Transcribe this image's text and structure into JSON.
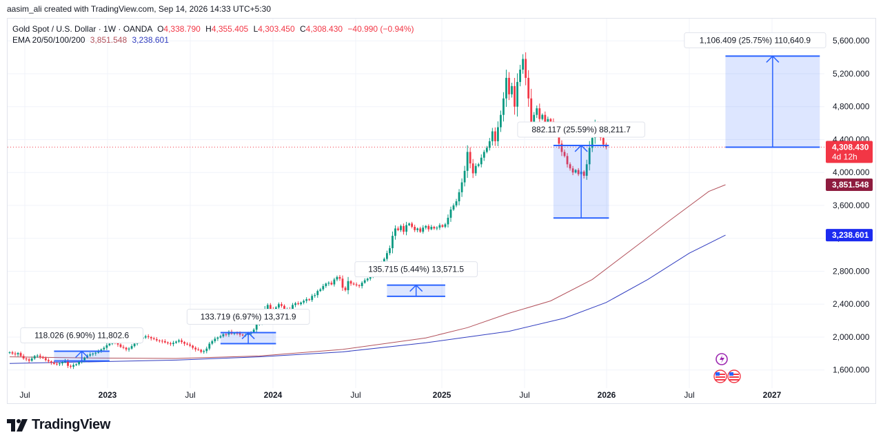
{
  "header": {
    "credit": "aasim_ali created with TradingView.com, Sep 14, 2026 14:33 UTC+5:30",
    "symbol": "Gold Spot / U.S. Dollar · 1W · OANDA",
    "open_label": "O",
    "open": "4,338.790",
    "high_label": "H",
    "high": "4,355.405",
    "low_label": "L",
    "low": "4,303.450",
    "close_label": "C",
    "close": "4,308.430",
    "change": "−40.990 (−0.94%)",
    "ema_label": "EMA 20/50/100/200",
    "ema_50": "3,851.548",
    "ema_200": "3,238.601"
  },
  "footer": {
    "brand": "TradingView"
  },
  "colors": {
    "up": "#089981",
    "down": "#f23645",
    "ema50": "#b2505a",
    "ema200": "#2f3bbf",
    "measure_box": "#2962ff",
    "price_badge": "#f23645",
    "ema50_badge": "#8e1c3f",
    "ema200_badge": "#1c2bf0"
  },
  "chart_data": {
    "type": "candlestick",
    "symbol": "XAUUSD",
    "interval": "1W",
    "y_axis": {
      "ticks": [
        1600,
        2000,
        2400,
        2800,
        3200,
        3600,
        4000,
        4400,
        4800,
        5200,
        5600
      ],
      "tick_labels": [
        "1,600.000",
        "2,000.000",
        "2,400.000",
        "2,800.000",
        "3,200.000",
        "3,600.000",
        "4,000.000",
        "4,400.000",
        "4,800.000",
        "5,200.000",
        "5,600.000"
      ],
      "range": [
        1380,
        5870
      ]
    },
    "x_axis": {
      "labels": [
        "Jul",
        "2023",
        "Jul",
        "2024",
        "Jul",
        "2025",
        "Jul",
        "2026",
        "Jul",
        "2027"
      ],
      "bold": [
        false,
        true,
        false,
        true,
        false,
        true,
        false,
        true,
        false,
        true
      ],
      "label_dates": [
        "2022-07",
        "2023-01",
        "2023-07",
        "2024-01",
        "2024-07",
        "2025-01",
        "2025-07",
        "2026-01",
        "2026-07",
        "2027-01"
      ]
    },
    "closes": [
      1815,
      1800,
      1790,
      1806,
      1770,
      1740,
      1730,
      1712,
      1740,
      1770,
      1775,
      1760,
      1745,
      1720,
      1705,
      1690,
      1675,
      1670,
      1680,
      1695,
      1710,
      1650,
      1640,
      1660,
      1670,
      1700,
      1720,
      1750,
      1775,
      1790,
      1800,
      1810,
      1825,
      1850,
      1870,
      1900,
      1920,
      1940,
      1935,
      1910,
      1880,
      1870,
      1850,
      1860,
      1890,
      1920,
      1950,
      1980,
      1995,
      2010,
      2000,
      1985,
      1975,
      1960,
      1955,
      1950,
      1935,
      1925,
      1915,
      1930,
      1945,
      1960,
      1940,
      1920,
      1910,
      1895,
      1870,
      1850,
      1845,
      1820,
      1830,
      1860,
      1920,
      1950,
      1980,
      1995,
      2010,
      2035,
      2030,
      2065,
      2040,
      2050,
      2045,
      2030,
      2020,
      2025,
      2040,
      2060,
      2090,
      2160,
      2180,
      2230,
      2330,
      2390,
      2340,
      2310,
      2360,
      2400,
      2380,
      2330,
      2340,
      2320,
      2390,
      2410,
      2400,
      2420,
      2440,
      2460,
      2450,
      2500,
      2510,
      2560,
      2580,
      2620,
      2650,
      2660,
      2640,
      2700,
      2730,
      2710,
      2600,
      2570,
      2680,
      2650,
      2640,
      2630,
      2620,
      2660,
      2690,
      2710,
      2750,
      2800,
      2850,
      2880,
      2900,
      2950,
      3020,
      3080,
      3230,
      3320,
      3300,
      3350,
      3280,
      3360,
      3380,
      3340,
      3300,
      3320,
      3280,
      3330,
      3350,
      3310,
      3340,
      3320,
      3330,
      3360,
      3340,
      3370,
      3450,
      3550,
      3600,
      3650,
      3760,
      3880,
      4020,
      4250,
      4110,
      3990,
      4080,
      4100,
      4180,
      4250,
      4300,
      4380,
      4500,
      4380,
      4550,
      4700,
      4900,
      5150,
      4950,
      5050,
      4800,
      5100,
      5250,
      5380,
      5150,
      4900,
      4600,
      4700,
      4780,
      4650,
      4700,
      4600,
      4650,
      4620,
      4530,
      4500,
      4350,
      4250,
      4200,
      4100,
      4050,
      4000,
      4030,
      3980,
      4010,
      3960,
      4100,
      4300,
      4420,
      4580,
      4500,
      4420,
      4340,
      4308
    ],
    "ema_50": {
      "name": "EMA 50",
      "last": 3851.548,
      "path_samples": [
        [
          0,
          1760
        ],
        [
          30,
          1745
        ],
        [
          60,
          1740
        ],
        [
          90,
          1770
        ],
        [
          120,
          1850
        ],
        [
          150,
          1990
        ],
        [
          165,
          2115
        ],
        [
          180,
          2290
        ],
        [
          195,
          2440
        ],
        [
          210,
          2700
        ],
        [
          228,
          3160
        ],
        [
          238,
          3420
        ],
        [
          252,
          3770
        ],
        [
          258,
          3851.548
        ]
      ]
    },
    "ema_200": {
      "name": "EMA 200",
      "last": 3238.601,
      "path_samples": [
        [
          0,
          1680
        ],
        [
          60,
          1720
        ],
        [
          90,
          1760
        ],
        [
          120,
          1820
        ],
        [
          150,
          1930
        ],
        [
          180,
          2070
        ],
        [
          200,
          2230
        ],
        [
          215,
          2420
        ],
        [
          230,
          2700
        ],
        [
          245,
          3020
        ],
        [
          258,
          3238.601
        ]
      ]
    },
    "price_labels": [
      {
        "text": "4,308.430",
        "sub": "4d 12h",
        "value": 4308.43,
        "color": "#f23645"
      },
      {
        "text": "3,851.548",
        "value": 3851.548,
        "color": "#8e1c3f"
      },
      {
        "text": "3,238.601",
        "value": 3238.601,
        "color": "#1c2bf0"
      }
    ],
    "measures": [
      {
        "text": "118.026 (6.90%) 11,802.6",
        "from_bar": 16,
        "to_bar": 36,
        "from": 1710,
        "to": 1828
      },
      {
        "text": "133.719 (6.97%) 13,371.9",
        "from_bar": 76,
        "to_bar": 96,
        "from": 1920,
        "to": 2054
      },
      {
        "text": "135.715 (5.44%) 13,571.5",
        "from_bar": 136,
        "to_bar": 157,
        "from": 2495,
        "to": 2631
      },
      {
        "text": "882.117 (25.59%) 88,211.7",
        "from_bar": 196,
        "to_bar": 216,
        "from": 3447,
        "to": 4329
      },
      {
        "text": "1,106.409 (25.75%) 110,640.9",
        "from_bar": 258,
        "to_bar": 292,
        "from": 4308,
        "to": 5414
      }
    ]
  }
}
